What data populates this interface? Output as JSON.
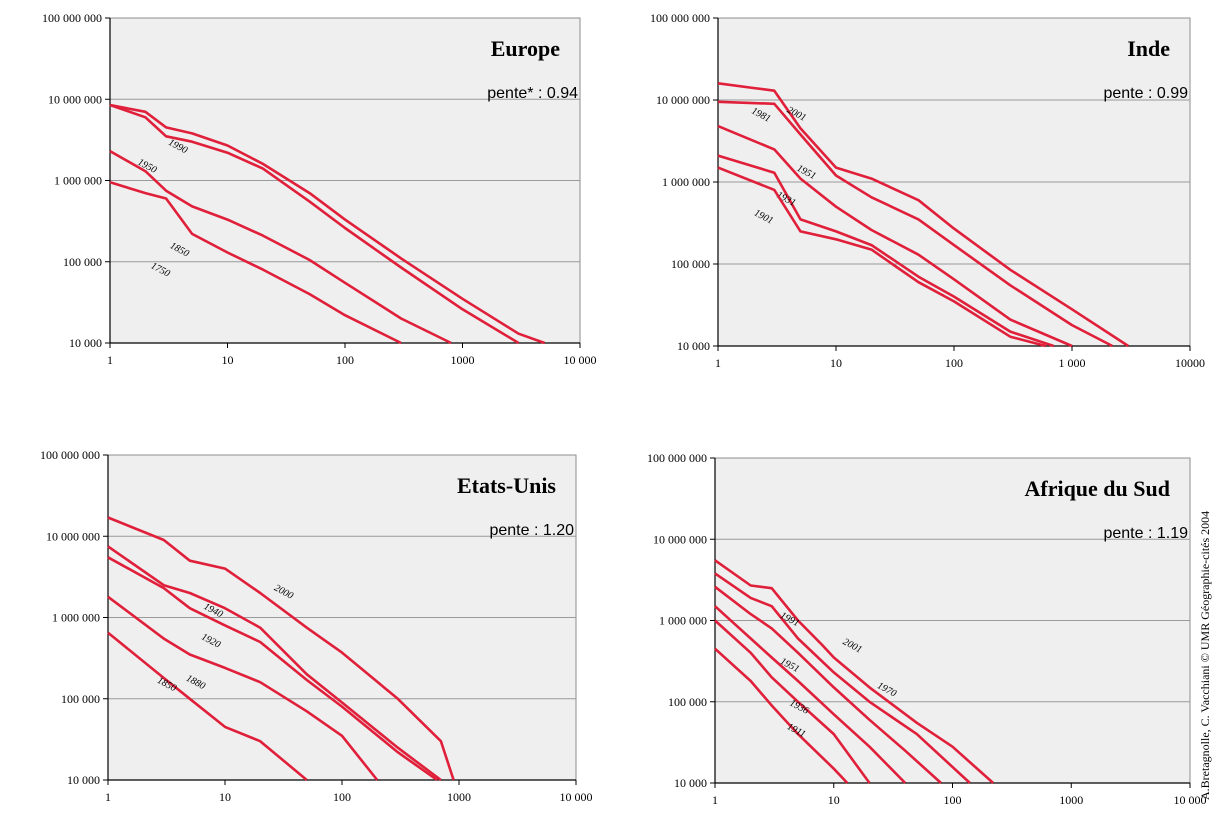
{
  "credit": "A.Bretagnolle, C. Vacchiani © UMR Géographie-cités 2004",
  "colors": {
    "series": "#e0203a",
    "plot_bg": "#efefef",
    "grid": "#9a9a9a",
    "border": "#8c8c8c"
  },
  "chart_data": [
    {
      "type": "line",
      "title": "Europe",
      "annotation": "pente* : 0.94",
      "xscale": "log",
      "yscale": "log",
      "xlim": [
        1,
        10000
      ],
      "ylim": [
        10000,
        100000000
      ],
      "x_ticks": [
        "1",
        "10",
        "100",
        "1000",
        "10 000"
      ],
      "y_ticks": [
        "10 000",
        "100 000",
        "1 000 000",
        "10 000 000",
        "100 000 000"
      ],
      "grid": true,
      "series": [
        {
          "name": "1990",
          "points": [
            [
              1,
              8500000
            ],
            [
              2,
              7000000
            ],
            [
              3,
              4500000
            ],
            [
              5,
              3800000
            ],
            [
              10,
              2700000
            ],
            [
              20,
              1600000
            ],
            [
              50,
              700000
            ],
            [
              100,
              330000
            ],
            [
              300,
              110000
            ],
            [
              1000,
              35000
            ],
            [
              3000,
              13000
            ],
            [
              5000,
              10000
            ]
          ]
        },
        {
          "name": "1950",
          "points": [
            [
              1,
              8500000
            ],
            [
              2,
              6000000
            ],
            [
              3,
              3500000
            ],
            [
              5,
              3000000
            ],
            [
              10,
              2200000
            ],
            [
              20,
              1400000
            ],
            [
              50,
              550000
            ],
            [
              100,
              260000
            ],
            [
              300,
              85000
            ],
            [
              1000,
              26000
            ],
            [
              3000,
              10000
            ]
          ]
        },
        {
          "name": "1850",
          "points": [
            [
              1,
              2300000
            ],
            [
              2,
              1300000
            ],
            [
              3,
              750000
            ],
            [
              5,
              480000
            ],
            [
              10,
              330000
            ],
            [
              20,
              210000
            ],
            [
              50,
              105000
            ],
            [
              100,
              55000
            ],
            [
              300,
              20000
            ],
            [
              800,
              10000
            ]
          ]
        },
        {
          "name": "1750",
          "points": [
            [
              1,
              950000
            ],
            [
              2,
              700000
            ],
            [
              3,
              600000
            ],
            [
              5,
              220000
            ],
            [
              10,
              130000
            ],
            [
              20,
              80000
            ],
            [
              50,
              40000
            ],
            [
              100,
              22000
            ],
            [
              300,
              10000
            ]
          ]
        }
      ]
    },
    {
      "type": "line",
      "title": "Inde",
      "annotation": "pente : 0.99",
      "xscale": "log",
      "yscale": "log",
      "xlim": [
        1,
        10000
      ],
      "ylim": [
        10000,
        100000000
      ],
      "x_ticks": [
        "1",
        "10",
        "100",
        "1 000",
        "10000"
      ],
      "y_ticks": [
        "10 000",
        "100 000",
        "1 000 000",
        "10 000 000",
        "100 000 000"
      ],
      "grid": true,
      "series": [
        {
          "name": "2001",
          "points": [
            [
              1,
              16000000
            ],
            [
              2,
              14000000
            ],
            [
              3,
              13000000
            ],
            [
              5,
              4500000
            ],
            [
              10,
              1500000
            ],
            [
              20,
              1100000
            ],
            [
              50,
              600000
            ],
            [
              100,
              270000
            ],
            [
              300,
              85000
            ],
            [
              1000,
              28000
            ],
            [
              3000,
              10000
            ]
          ]
        },
        {
          "name": "1981",
          "points": [
            [
              1,
              9500000
            ],
            [
              3,
              9000000
            ],
            [
              5,
              3800000
            ],
            [
              10,
              1200000
            ],
            [
              20,
              650000
            ],
            [
              50,
              350000
            ],
            [
              100,
              170000
            ],
            [
              300,
              55000
            ],
            [
              1000,
              18000
            ],
            [
              2200,
              10000
            ]
          ]
        },
        {
          "name": "1951",
          "points": [
            [
              1,
              4800000
            ],
            [
              3,
              2500000
            ],
            [
              5,
              1100000
            ],
            [
              10,
              500000
            ],
            [
              20,
              260000
            ],
            [
              50,
              130000
            ],
            [
              100,
              65000
            ],
            [
              300,
              21000
            ],
            [
              1000,
              10000
            ]
          ]
        },
        {
          "name": "1931",
          "points": [
            [
              1,
              2100000
            ],
            [
              3,
              1300000
            ],
            [
              5,
              350000
            ],
            [
              10,
              250000
            ],
            [
              20,
              170000
            ],
            [
              50,
              70000
            ],
            [
              100,
              40000
            ],
            [
              300,
              15000
            ],
            [
              700,
              10000
            ]
          ]
        },
        {
          "name": "1901",
          "points": [
            [
              1,
              1500000
            ],
            [
              3,
              800000
            ],
            [
              5,
              250000
            ],
            [
              10,
              200000
            ],
            [
              20,
              150000
            ],
            [
              50,
              60000
            ],
            [
              100,
              35000
            ],
            [
              300,
              13000
            ],
            [
              600,
              10000
            ]
          ]
        }
      ]
    },
    {
      "type": "line",
      "title": "Etats-Unis",
      "annotation": "pente : 1.20",
      "xscale": "log",
      "yscale": "log",
      "xlim": [
        1,
        10000
      ],
      "ylim": [
        10000,
        100000000
      ],
      "x_ticks": [
        "1",
        "10",
        "100",
        "1000",
        "10 000"
      ],
      "y_ticks": [
        "10 000",
        "100 000",
        "1 000 000",
        "10 000 000",
        "100 000 000"
      ],
      "grid": true,
      "series": [
        {
          "name": "2000",
          "points": [
            [
              1,
              17000000
            ],
            [
              3,
              9000000
            ],
            [
              5,
              5000000
            ],
            [
              10,
              4000000
            ],
            [
              20,
              2000000
            ],
            [
              50,
              750000
            ],
            [
              100,
              370000
            ],
            [
              300,
              100000
            ],
            [
              700,
              30000
            ],
            [
              900,
              10000
            ]
          ]
        },
        {
          "name": "1940",
          "points": [
            [
              1,
              7500000
            ],
            [
              3,
              2500000
            ],
            [
              5,
              2000000
            ],
            [
              10,
              1300000
            ],
            [
              20,
              750000
            ],
            [
              50,
              200000
            ],
            [
              100,
              90000
            ],
            [
              300,
              25000
            ],
            [
              700,
              10000
            ]
          ]
        },
        {
          "name": "1920",
          "points": [
            [
              1,
              5500000
            ],
            [
              3,
              2300000
            ],
            [
              5,
              1300000
            ],
            [
              10,
              800000
            ],
            [
              20,
              500000
            ],
            [
              50,
              170000
            ],
            [
              100,
              80000
            ],
            [
              300,
              22000
            ],
            [
              650,
              10000
            ]
          ]
        },
        {
          "name": "1880",
          "points": [
            [
              1,
              1800000
            ],
            [
              3,
              550000
            ],
            [
              5,
              350000
            ],
            [
              10,
              240000
            ],
            [
              20,
              160000
            ],
            [
              50,
              70000
            ],
            [
              100,
              35000
            ],
            [
              200,
              10000
            ]
          ]
        },
        {
          "name": "1850",
          "points": [
            [
              1,
              650000
            ],
            [
              3,
              180000
            ],
            [
              5,
              100000
            ],
            [
              10,
              45000
            ],
            [
              20,
              30000
            ],
            [
              50,
              10000
            ]
          ]
        }
      ]
    },
    {
      "type": "line",
      "title": "Afrique du Sud",
      "annotation": "pente : 1.19",
      "xscale": "log",
      "yscale": "log",
      "xlim": [
        1,
        10000
      ],
      "ylim": [
        10000,
        100000000
      ],
      "x_ticks": [
        "1",
        "10",
        "100",
        "1000",
        "10 000"
      ],
      "y_ticks": [
        "10 000",
        "100 000",
        "1 000 000",
        "10 000 000",
        "100 000 000"
      ],
      "grid": true,
      "series": [
        {
          "name": "2001",
          "points": [
            [
              1,
              5500000
            ],
            [
              2,
              2700000
            ],
            [
              3,
              2500000
            ],
            [
              5,
              1000000
            ],
            [
              8,
              500000
            ],
            [
              10,
              350000
            ],
            [
              20,
              150000
            ],
            [
              50,
              55000
            ],
            [
              100,
              28000
            ],
            [
              220,
              10000
            ]
          ]
        },
        {
          "name": "1970",
          "points": [
            [
              1,
              3800000
            ],
            [
              2,
              1900000
            ],
            [
              3,
              1500000
            ],
            [
              5,
              600000
            ],
            [
              10,
              230000
            ],
            [
              20,
              100000
            ],
            [
              50,
              40000
            ],
            [
              140,
              10000
            ]
          ]
        },
        {
          "name": "1991",
          "points": [
            [
              1,
              2600000
            ],
            [
              2,
              1200000
            ],
            [
              3,
              800000
            ],
            [
              5,
              400000
            ],
            [
              10,
              150000
            ],
            [
              20,
              60000
            ],
            [
              40,
              25000
            ],
            [
              80,
              10000
            ]
          ]
        },
        {
          "name": "1951",
          "points": [
            [
              1,
              1500000
            ],
            [
              2,
              600000
            ],
            [
              3,
              350000
            ],
            [
              5,
              180000
            ],
            [
              10,
              70000
            ],
            [
              20,
              28000
            ],
            [
              40,
              10000
            ]
          ]
        },
        {
          "name": "1936",
          "points": [
            [
              1,
              1000000
            ],
            [
              2,
              400000
            ],
            [
              3,
              200000
            ],
            [
              5,
              100000
            ],
            [
              10,
              40000
            ],
            [
              20,
              10000
            ]
          ]
        },
        {
          "name": "1911",
          "points": [
            [
              1,
              450000
            ],
            [
              2,
              180000
            ],
            [
              3,
              90000
            ],
            [
              5,
              40000
            ],
            [
              10,
              15000
            ],
            [
              13,
              10000
            ]
          ]
        }
      ]
    }
  ]
}
